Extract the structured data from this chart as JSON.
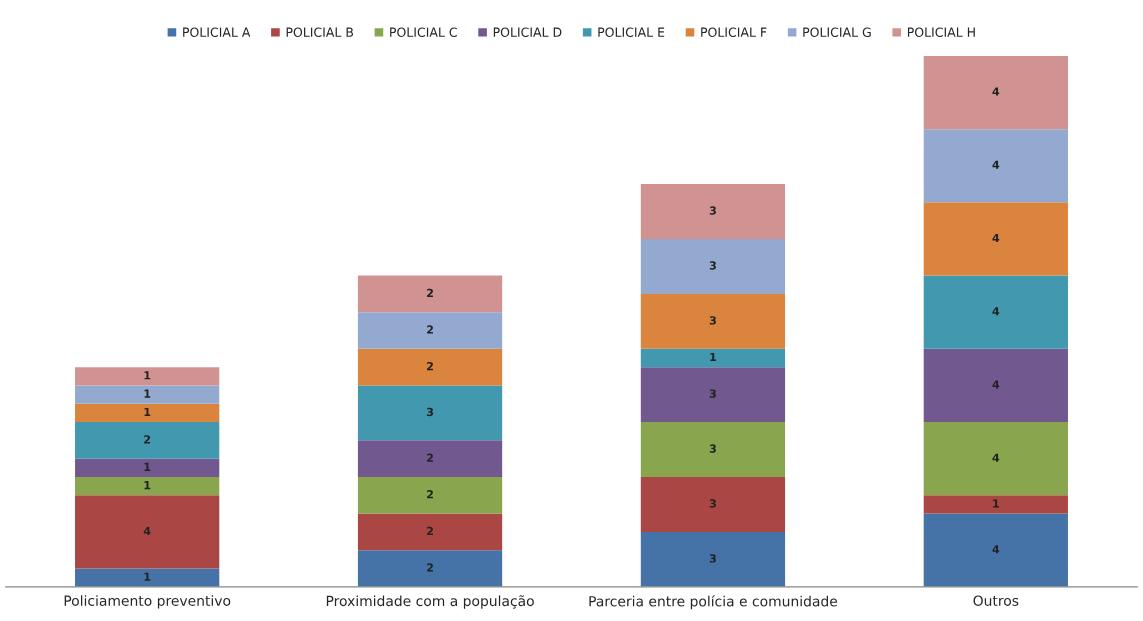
{
  "chart_data": {
    "type": "bar",
    "stacked": true,
    "data_labels": true,
    "legend": "top",
    "grid": false,
    "categories": [
      "Policiamento preventivo",
      "Proximidade com a população",
      "Parceria entre polícia e comunidade",
      "Outros"
    ],
    "series": [
      {
        "name": "POLICIAL A",
        "color": "#4572a7",
        "values": [
          1,
          2,
          3,
          4
        ]
      },
      {
        "name": "POLICIAL B",
        "color": "#aa4643",
        "values": [
          4,
          2,
          3,
          1
        ]
      },
      {
        "name": "POLICIAL C",
        "color": "#89a54e",
        "values": [
          1,
          2,
          3,
          4
        ]
      },
      {
        "name": "POLICIAL D",
        "color": "#71588f",
        "values": [
          1,
          2,
          3,
          4
        ]
      },
      {
        "name": "POLICIAL E",
        "color": "#4198af",
        "values": [
          2,
          3,
          1,
          4
        ]
      },
      {
        "name": "POLICIAL F",
        "color": "#db843d",
        "values": [
          1,
          2,
          3,
          4
        ]
      },
      {
        "name": "POLICIAL G",
        "color": "#93a9cf",
        "values": [
          1,
          2,
          3,
          4
        ]
      },
      {
        "name": "POLICIAL H",
        "color": "#d19392",
        "values": [
          1,
          2,
          3,
          4
        ]
      }
    ]
  }
}
